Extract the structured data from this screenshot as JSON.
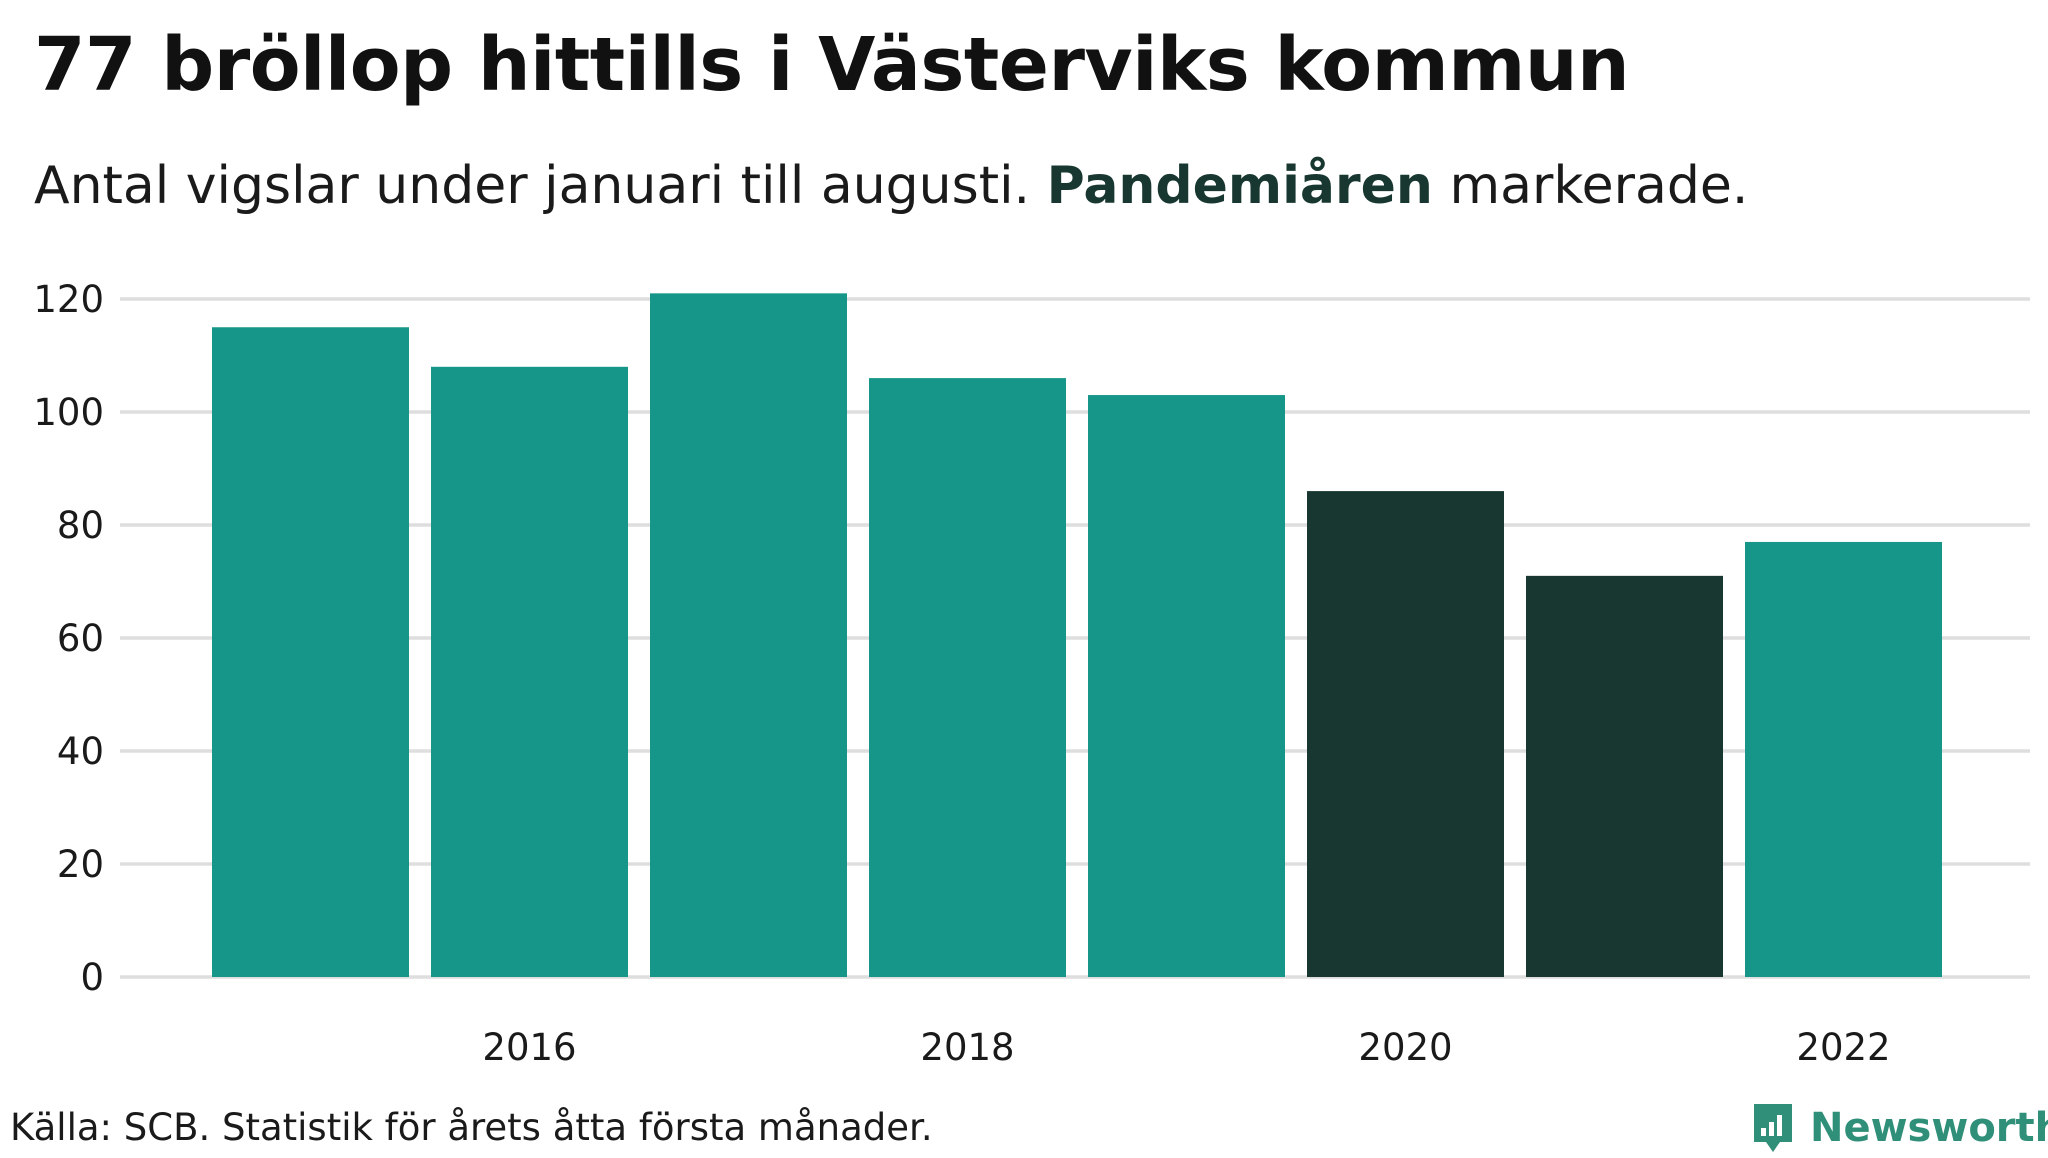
{
  "title": "77 bröllop hittills i Västerviks kommun",
  "subtitle": {
    "before": "Antal vigslar under januari till augusti.",
    "highlight": "Pandemiåren",
    "after": "markerade."
  },
  "colors": {
    "normal": "#159689",
    "highlight": "#183730",
    "grid": "#dedede",
    "text": "#1a1a1a",
    "brand": "#2f8f78"
  },
  "chart_data": {
    "type": "bar",
    "title": "77 bröllop hittills i Västerviks kommun",
    "xlabel": "",
    "ylabel": "",
    "categories": [
      "2015",
      "2016",
      "2017",
      "2018",
      "2019",
      "2020",
      "2021",
      "2022"
    ],
    "values": [
      115,
      108,
      121,
      106,
      103,
      86,
      71,
      77
    ],
    "highlighted": [
      "2020",
      "2021"
    ],
    "x_tick_labels": [
      "2016",
      "2018",
      "2020",
      "2022"
    ],
    "y_ticks": [
      0,
      20,
      40,
      60,
      80,
      100,
      120
    ],
    "ylim": [
      0,
      125
    ],
    "grid": true
  },
  "footer": {
    "source": "Källa: SCB. Statistik för årets åtta första månader.",
    "brand": "Newsworthy"
  }
}
